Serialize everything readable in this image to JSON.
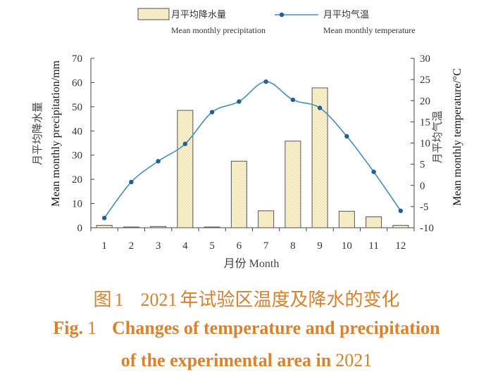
{
  "chart_data": {
    "type": "bar",
    "x": [
      "1",
      "2",
      "3",
      "4",
      "5",
      "6",
      "7",
      "8",
      "9",
      "10",
      "11",
      "12"
    ],
    "xlabel": "月份 Month",
    "ylabel_cn": "月平均降水量",
    "ylabel_en": "Mean monthly precipitation/mm",
    "y2label_cn": "月平均气温",
    "y2label_en": "Mean monthly temperature/°C",
    "ylim": [
      0,
      70
    ],
    "y_ticks": [
      0,
      10,
      20,
      30,
      40,
      50,
      60,
      70
    ],
    "y2lim": [
      -10,
      30
    ],
    "y2_ticks": [
      -10,
      -5,
      0,
      5,
      10,
      15,
      20,
      25,
      30
    ],
    "grid": false,
    "legend_position": "top",
    "series": [
      {
        "name_cn": "月平均降水量",
        "name_en": "Mean monthly precipitation",
        "type": "bar",
        "axis": "left",
        "values": [
          1.0,
          0.3,
          0.5,
          48.5,
          0.3,
          27.5,
          7.0,
          35.8,
          57.8,
          6.8,
          4.5,
          1.0
        ]
      },
      {
        "name_cn": "月平均气温",
        "name_en": "Mean monthly temperature",
        "type": "line",
        "axis": "right",
        "values": [
          -7.7,
          0.8,
          5.7,
          9.8,
          17.3,
          19.8,
          24.5,
          20.2,
          18.3,
          11.6,
          3.2,
          -6.0
        ]
      }
    ],
    "colors": {
      "bar_fill": "#fbf3d2",
      "bar_stroke": "#555555",
      "bar_dots": "#c9a64a",
      "line": "#3f8fc8",
      "axis": "#444444"
    }
  },
  "caption": {
    "cn_prefix": "图",
    "cn_num": "1",
    "cn_year": "2021",
    "cn_text": "年试验区温度及降水的变化",
    "en_fig": "Fig.",
    "en_num": "1",
    "en_line1": "Changes of temperature and precipitation",
    "en_line2": "of the experimental area in",
    "en_year": "2021",
    "color": "#e0802a"
  }
}
